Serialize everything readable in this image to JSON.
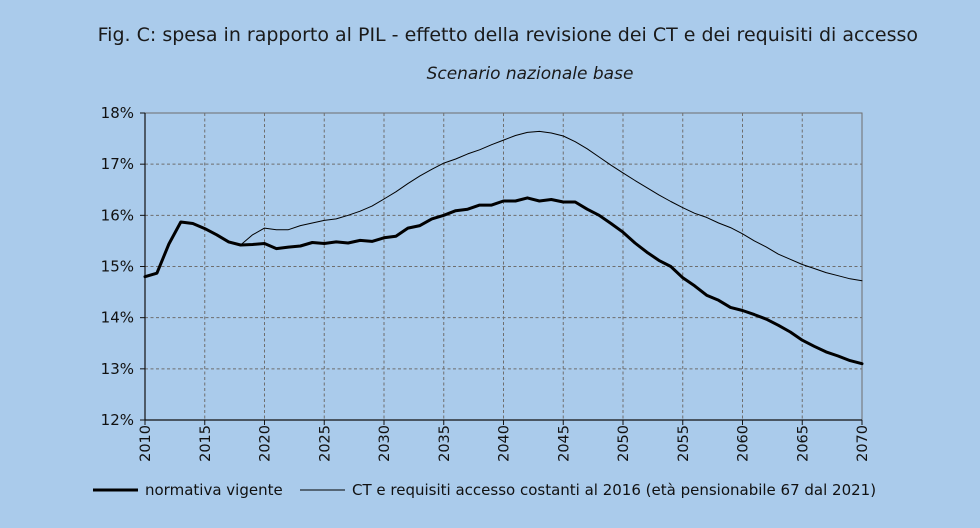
{
  "chart_data": {
    "type": "line",
    "title": "Fig. C: spesa in rapporto al PIL - effetto della revisione dei CT e dei requisiti di accesso",
    "subtitle": "Scenario nazionale base",
    "xlabel": "",
    "ylabel": "",
    "xlim": [
      2010,
      2070
    ],
    "ylim": [
      12,
      18
    ],
    "y_ticks": [
      12,
      13,
      14,
      15,
      16,
      17,
      18
    ],
    "y_tick_labels": [
      "12%",
      "13%",
      "14%",
      "15%",
      "16%",
      "17%",
      "18%"
    ],
    "x_ticks": [
      2010,
      2015,
      2020,
      2025,
      2030,
      2035,
      2040,
      2045,
      2050,
      2055,
      2060,
      2065,
      2070
    ],
    "x_tick_labels": [
      "2010",
      "2015",
      "2020",
      "2025",
      "2030",
      "2035",
      "2040",
      "2045",
      "2050",
      "2055",
      "2060",
      "2065",
      "2070"
    ],
    "grid": true,
    "legend_position": "bottom",
    "series": [
      {
        "name": "normativa vigente",
        "style": "thick",
        "color": "#000000",
        "x": [
          2010,
          2011,
          2012,
          2013,
          2014,
          2015,
          2016,
          2017,
          2018,
          2019,
          2020,
          2021,
          2022,
          2023,
          2024,
          2025,
          2026,
          2027,
          2028,
          2029,
          2030,
          2031,
          2032,
          2033,
          2034,
          2035,
          2036,
          2037,
          2038,
          2039,
          2040,
          2041,
          2042,
          2043,
          2044,
          2045,
          2046,
          2047,
          2048,
          2049,
          2050,
          2051,
          2052,
          2053,
          2054,
          2055,
          2056,
          2057,
          2058,
          2059,
          2060,
          2061,
          2062,
          2063,
          2064,
          2065,
          2066,
          2067,
          2068,
          2069,
          2070
        ],
        "values": [
          14.8,
          14.87,
          15.44,
          15.87,
          15.84,
          15.74,
          15.62,
          15.48,
          15.42,
          15.43,
          15.45,
          15.35,
          15.38,
          15.4,
          15.47,
          15.45,
          15.48,
          15.46,
          15.51,
          15.49,
          15.56,
          15.59,
          15.75,
          15.8,
          15.93,
          16.0,
          16.09,
          16.12,
          16.2,
          16.2,
          16.28,
          16.28,
          16.34,
          16.28,
          16.31,
          16.26,
          16.26,
          16.12,
          16.0,
          15.84,
          15.67,
          15.46,
          15.28,
          15.12,
          15.0,
          14.78,
          14.62,
          14.44,
          14.34,
          14.2,
          14.14,
          14.06,
          13.97,
          13.85,
          13.72,
          13.56,
          13.44,
          13.33,
          13.25,
          13.16,
          13.1
        ]
      },
      {
        "name": "CT e requisiti accesso costanti al 2016 (età pensionabile 67 dal 2021)",
        "style": "thin",
        "color": "#000000",
        "x": [
          2010,
          2011,
          2012,
          2013,
          2014,
          2015,
          2016,
          2017,
          2018,
          2019,
          2020,
          2021,
          2022,
          2023,
          2024,
          2025,
          2026,
          2027,
          2028,
          2029,
          2030,
          2031,
          2032,
          2033,
          2034,
          2035,
          2036,
          2037,
          2038,
          2039,
          2040,
          2041,
          2042,
          2043,
          2044,
          2045,
          2046,
          2047,
          2048,
          2049,
          2050,
          2051,
          2052,
          2053,
          2054,
          2055,
          2056,
          2057,
          2058,
          2059,
          2060,
          2061,
          2062,
          2063,
          2064,
          2065,
          2066,
          2067,
          2068,
          2069,
          2070
        ],
        "values": [
          14.8,
          14.87,
          15.44,
          15.87,
          15.84,
          15.74,
          15.62,
          15.48,
          15.42,
          15.62,
          15.75,
          15.72,
          15.72,
          15.8,
          15.85,
          15.9,
          15.93,
          16.0,
          16.08,
          16.18,
          16.32,
          16.46,
          16.62,
          16.77,
          16.9,
          17.02,
          17.1,
          17.2,
          17.28,
          17.38,
          17.47,
          17.56,
          17.62,
          17.64,
          17.61,
          17.55,
          17.44,
          17.3,
          17.14,
          16.98,
          16.83,
          16.68,
          16.54,
          16.4,
          16.27,
          16.15,
          16.04,
          15.96,
          15.85,
          15.76,
          15.64,
          15.5,
          15.38,
          15.24,
          15.14,
          15.04,
          14.96,
          14.88,
          14.82,
          14.76,
          14.72
        ]
      }
    ]
  }
}
